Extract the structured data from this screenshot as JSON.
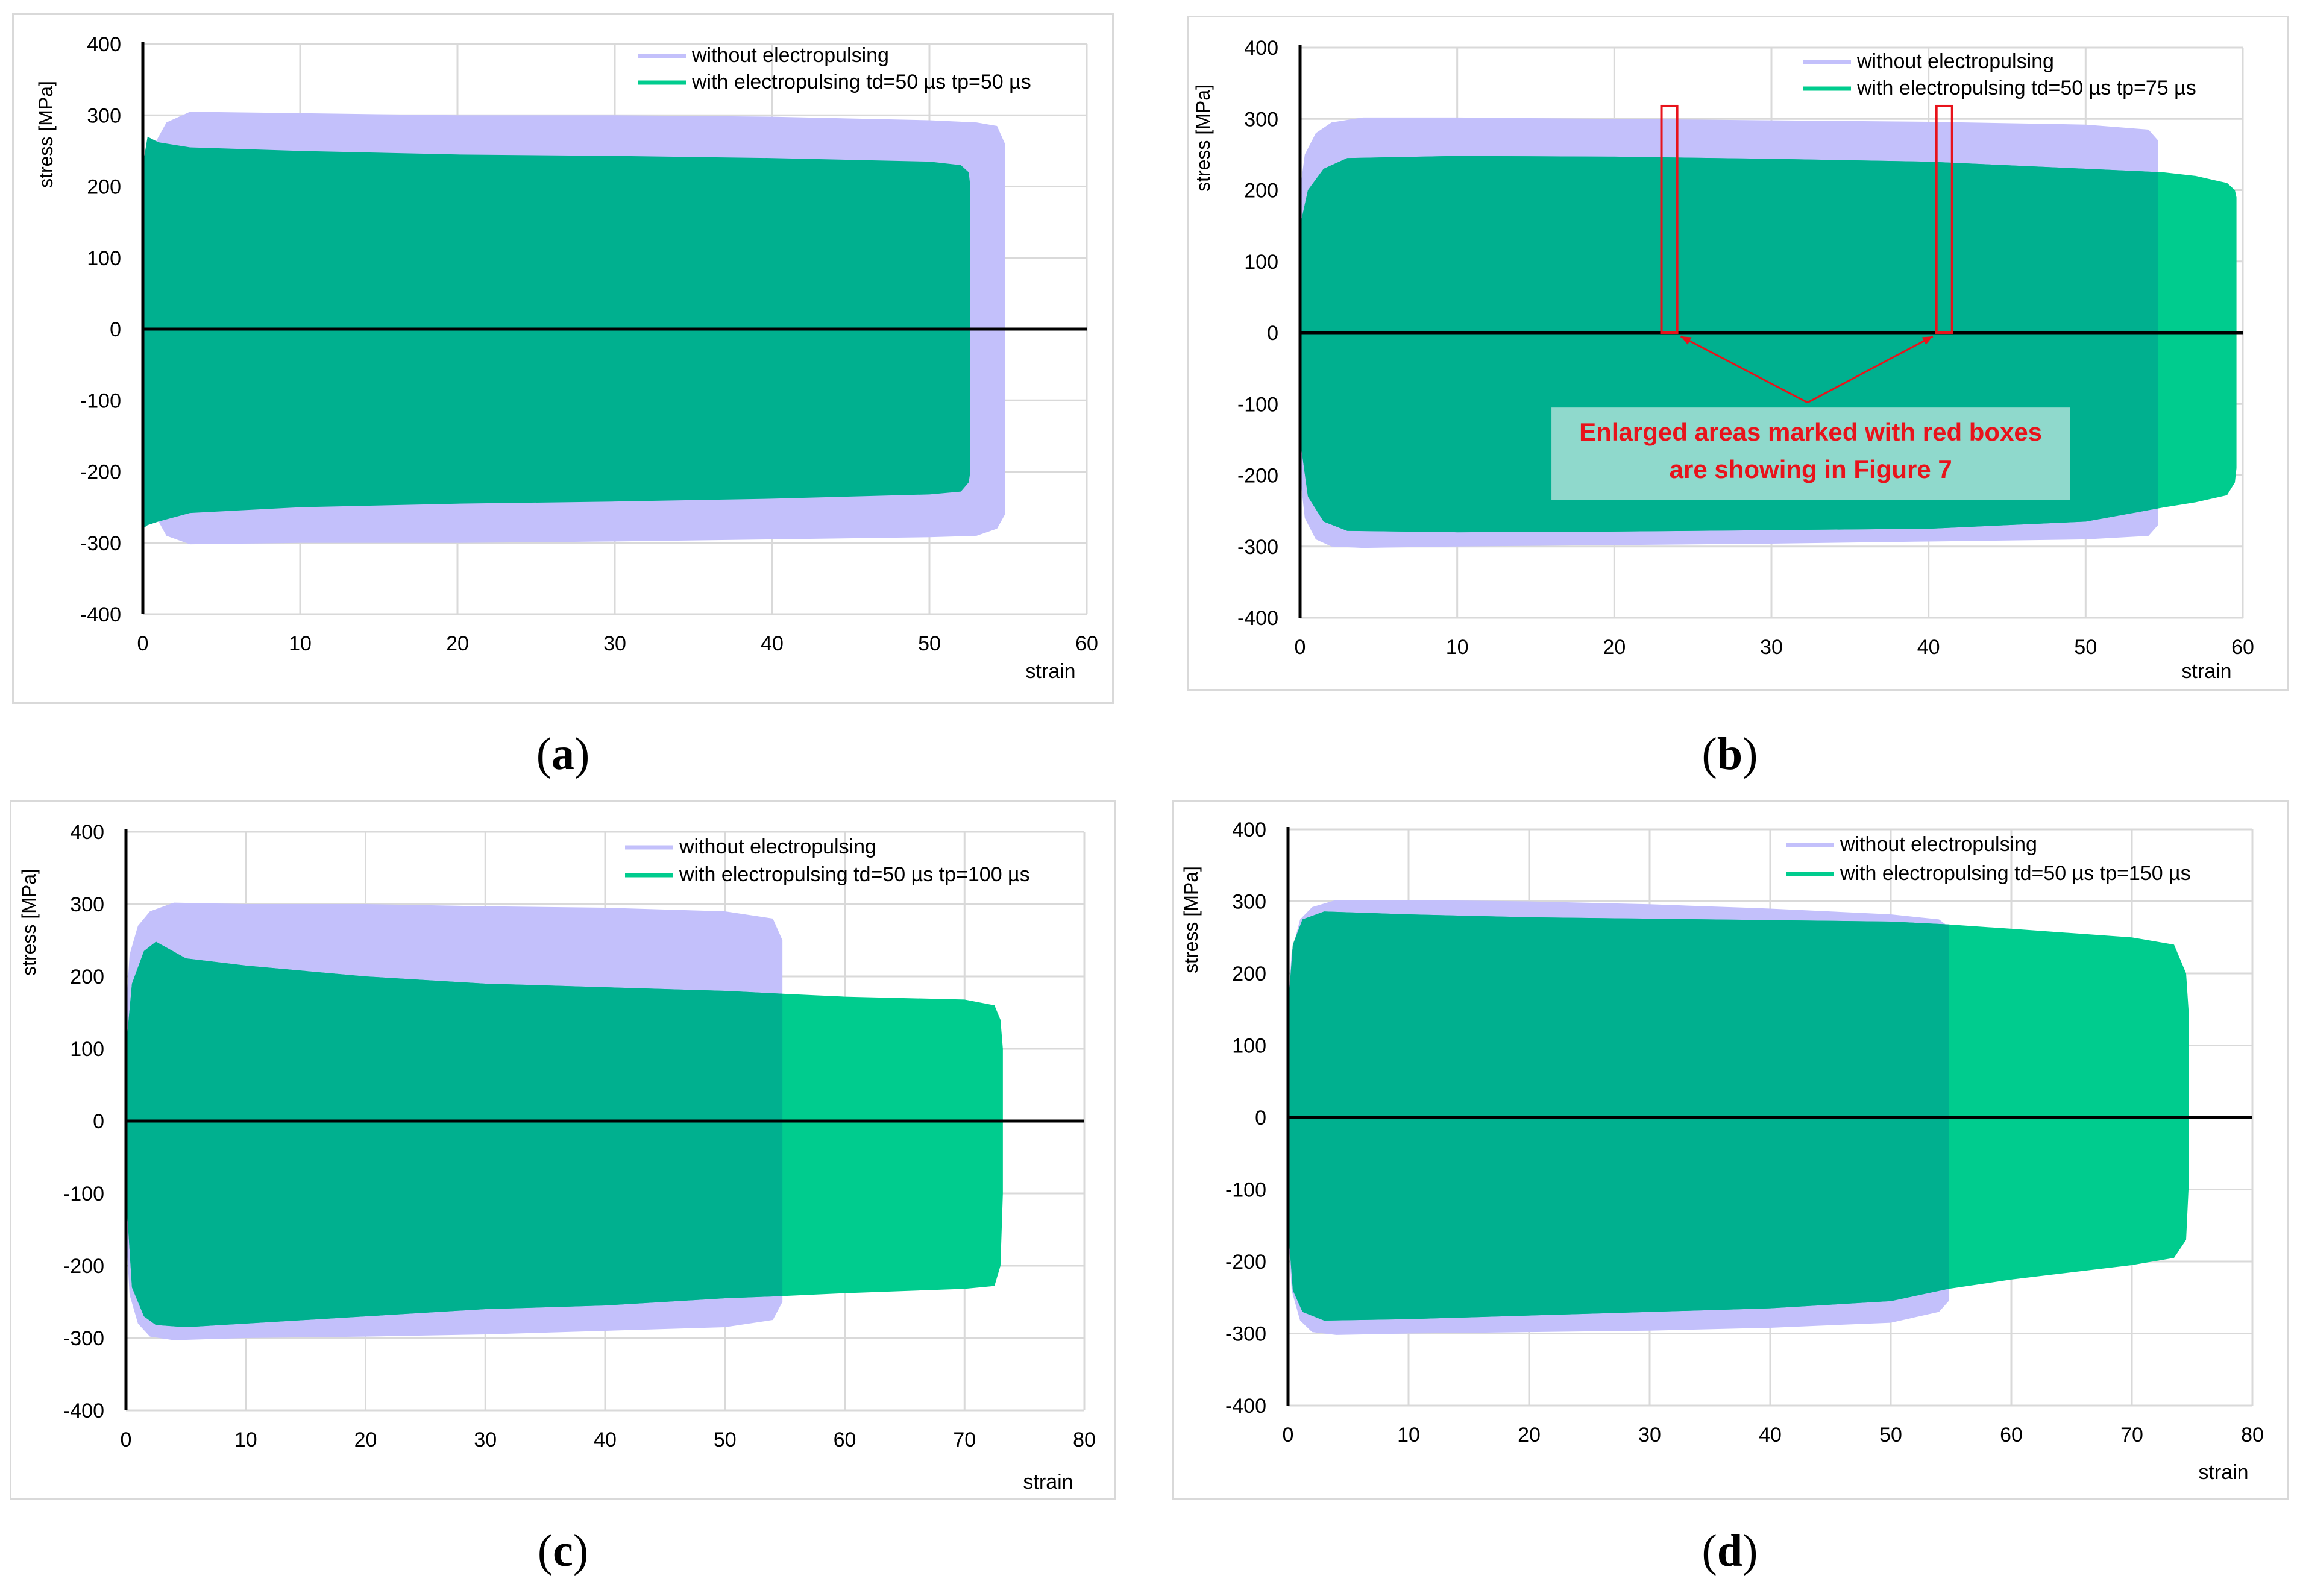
{
  "chart_data": [
    {
      "type": "area",
      "panel": "a",
      "caption_letter": "a",
      "xlabel": "strain",
      "ylabel": "stress [MPa]",
      "xlim": [
        0,
        60
      ],
      "ylim": [
        -400,
        400
      ],
      "xticks": [
        "0",
        "10",
        "20",
        "30",
        "40",
        "50",
        "60"
      ],
      "yticks": [
        "400",
        "300",
        "200",
        "100",
        "0",
        "-100",
        "-200",
        "-300",
        "-400"
      ],
      "legend": [
        "without electropulsing",
        "with electropulsing  td=50 µs  tp=50 µs"
      ],
      "colors": {
        "without": "#c3c0fb",
        "with": "#00b08f",
        "with_extra": "#00cc8e",
        "axis": "#000000",
        "grid": "#d9d9d9"
      },
      "series": [
        {
          "name": "without electropulsing",
          "x": [
            0,
            0.5,
            1.5,
            3,
            10,
            20,
            30,
            40,
            50,
            53,
            54.3,
            54.8,
            54.8
          ],
          "upper": [
            180,
            250,
            290,
            305,
            303,
            300,
            300,
            298,
            293,
            290,
            285,
            260,
            0
          ],
          "lower": [
            -180,
            -250,
            -290,
            -302,
            -300,
            -300,
            -298,
            -295,
            -292,
            -290,
            -280,
            -260,
            0
          ]
        },
        {
          "name": "with electropulsing  td=50 µs  tp=50 µs",
          "x": [
            0,
            0.3,
            1,
            3,
            10,
            20,
            30,
            40,
            50,
            52,
            52.5,
            52.6,
            52.6
          ],
          "upper": [
            230,
            270,
            262,
            255,
            250,
            245,
            243,
            240,
            235,
            230,
            220,
            200,
            0
          ],
          "lower": [
            -280,
            -275,
            -270,
            -258,
            -250,
            -245,
            -242,
            -238,
            -232,
            -228,
            -215,
            -200,
            0
          ]
        }
      ]
    },
    {
      "type": "area",
      "panel": "b",
      "caption_letter": "b",
      "xlabel": "strain",
      "ylabel": "stress [MPa]",
      "xlim": [
        0,
        60
      ],
      "ylim": [
        -400,
        400
      ],
      "xticks": [
        "0",
        "10",
        "20",
        "30",
        "40",
        "50",
        "60"
      ],
      "yticks": [
        "400",
        "300",
        "200",
        "100",
        "0",
        "-100",
        "-200",
        "-300",
        "-400"
      ],
      "legend": [
        "without electropulsing",
        "with electropulsing  td=50 µs  tp=75 µs"
      ],
      "annotation": [
        "Enlarged areas marked with red boxes",
        "are showing in Figure 7"
      ],
      "annotation_boxes_x": [
        [
          23,
          24
        ],
        [
          40.5,
          41.5
        ]
      ],
      "annotation_boxes_y": [
        0,
        318
      ],
      "annotation_arrow_origin": [
        32.3,
        -98
      ],
      "colors": {
        "without": "#c3c0fb",
        "with": "#00b08f",
        "with_extra": "#00cc8e",
        "axis": "#000000",
        "grid": "#d9d9d9",
        "annotation_text": "#e8131b",
        "annotation_box": "#8fd9cc",
        "annotation_line": "#e8131b"
      },
      "series": [
        {
          "name": "without electropulsing",
          "x": [
            0,
            0.3,
            1,
            2,
            4,
            10,
            20,
            30,
            40,
            50,
            54,
            54.6,
            54.6
          ],
          "upper": [
            200,
            250,
            280,
            295,
            302,
            302,
            300,
            298,
            296,
            292,
            285,
            270,
            0
          ],
          "lower": [
            -200,
            -260,
            -290,
            -300,
            -302,
            -300,
            -298,
            -296,
            -293,
            -290,
            -285,
            -270,
            0
          ]
        },
        {
          "name": "with electropulsing  td=50 µs  tp=75 µs",
          "x": [
            0,
            0.5,
            1.5,
            3,
            10,
            20,
            30,
            40,
            50,
            55,
            57,
            59,
            59.5,
            59.6,
            59.6
          ],
          "upper": [
            150,
            200,
            230,
            245,
            248,
            247,
            244,
            240,
            230,
            225,
            220,
            210,
            200,
            190,
            0
          ],
          "lower": [
            -150,
            -230,
            -265,
            -278,
            -280,
            -279,
            -277,
            -275,
            -265,
            -245,
            -238,
            -228,
            -210,
            -190,
            0
          ]
        }
      ]
    },
    {
      "type": "area",
      "panel": "c",
      "caption_letter": "c",
      "xlabel": "strain",
      "ylabel": "stress [MPa]",
      "xlim": [
        0,
        80
      ],
      "ylim": [
        -400,
        400
      ],
      "xticks": [
        "0",
        "10",
        "20",
        "30",
        "40",
        "50",
        "60",
        "70",
        "80"
      ],
      "yticks": [
        "400",
        "300",
        "200",
        "100",
        "0",
        "-100",
        "-200",
        "-300",
        "-400"
      ],
      "legend": [
        "without electropulsing",
        "with electropulsing  td=50 µs  tp=100 µs"
      ],
      "colors": {
        "without": "#c3c0fb",
        "with": "#00b08f",
        "with_extra": "#00cc8e",
        "axis": "#000000",
        "grid": "#d9d9d9"
      },
      "series": [
        {
          "name": "without electropulsing",
          "x": [
            0,
            0.3,
            1,
            2,
            4,
            10,
            20,
            30,
            40,
            50,
            54,
            54.8,
            54.8
          ],
          "upper": [
            150,
            230,
            270,
            290,
            302,
            300,
            300,
            297,
            295,
            290,
            280,
            250,
            0
          ],
          "lower": [
            -150,
            -240,
            -280,
            -298,
            -303,
            -300,
            -298,
            -295,
            -290,
            -285,
            -275,
            -250,
            0
          ]
        },
        {
          "name": "with electropulsing  td=50 µs  tp=100 µs",
          "x": [
            0,
            0.5,
            1.5,
            2.5,
            5,
            10,
            20,
            30,
            40,
            50,
            54.8,
            60,
            70,
            72.5,
            73,
            73.2,
            73.2
          ],
          "upper": [
            100,
            190,
            235,
            248,
            225,
            215,
            200,
            190,
            185,
            180,
            176,
            172,
            168,
            160,
            140,
            100,
            0
          ],
          "lower": [
            -100,
            -230,
            -270,
            -282,
            -285,
            -280,
            -270,
            -260,
            -255,
            -245,
            -242,
            -238,
            -232,
            -228,
            -200,
            -100,
            0
          ]
        }
      ]
    },
    {
      "type": "area",
      "panel": "d",
      "caption_letter": "d",
      "xlabel": "strain",
      "ylabel": "stress [MPa]",
      "xlim": [
        0,
        80
      ],
      "ylim": [
        -400,
        400
      ],
      "xticks": [
        "0",
        "10",
        "20",
        "30",
        "40",
        "50",
        "60",
        "70",
        "80"
      ],
      "yticks": [
        "400",
        "300",
        "200",
        "100",
        "0",
        "-100",
        "-200",
        "-300",
        "-400"
      ],
      "legend": [
        "without electropulsing",
        "with electropulsing  td=50 µs  tp=150 µs"
      ],
      "colors": {
        "without": "#c3c0fb",
        "with": "#00b08f",
        "with_extra": "#00cc8e",
        "axis": "#000000",
        "grid": "#d9d9d9"
      },
      "series": [
        {
          "name": "without electropulsing",
          "x": [
            0,
            0.3,
            1,
            2,
            4,
            10,
            20,
            30,
            40,
            50,
            54,
            54.8,
            54.8
          ],
          "upper": [
            150,
            230,
            275,
            292,
            302,
            302,
            300,
            296,
            290,
            282,
            275,
            265,
            0
          ],
          "lower": [
            -150,
            -240,
            -282,
            -298,
            -302,
            -300,
            -298,
            -296,
            -292,
            -285,
            -270,
            -255,
            0
          ]
        },
        {
          "name": "with electropulsing  td=50 µs  tp=150 µs",
          "x": [
            0,
            0.4,
            1.2,
            3,
            10,
            20,
            30,
            40,
            50,
            54.8,
            60,
            70,
            73.5,
            74.5,
            74.7,
            74.7
          ],
          "upper": [
            150,
            240,
            275,
            286,
            282,
            278,
            276,
            274,
            272,
            268,
            262,
            250,
            240,
            200,
            150,
            0
          ],
          "lower": [
            -150,
            -240,
            -270,
            -282,
            -280,
            -275,
            -270,
            -265,
            -255,
            -238,
            -225,
            -205,
            -195,
            -170,
            -100,
            0
          ]
        }
      ]
    }
  ]
}
